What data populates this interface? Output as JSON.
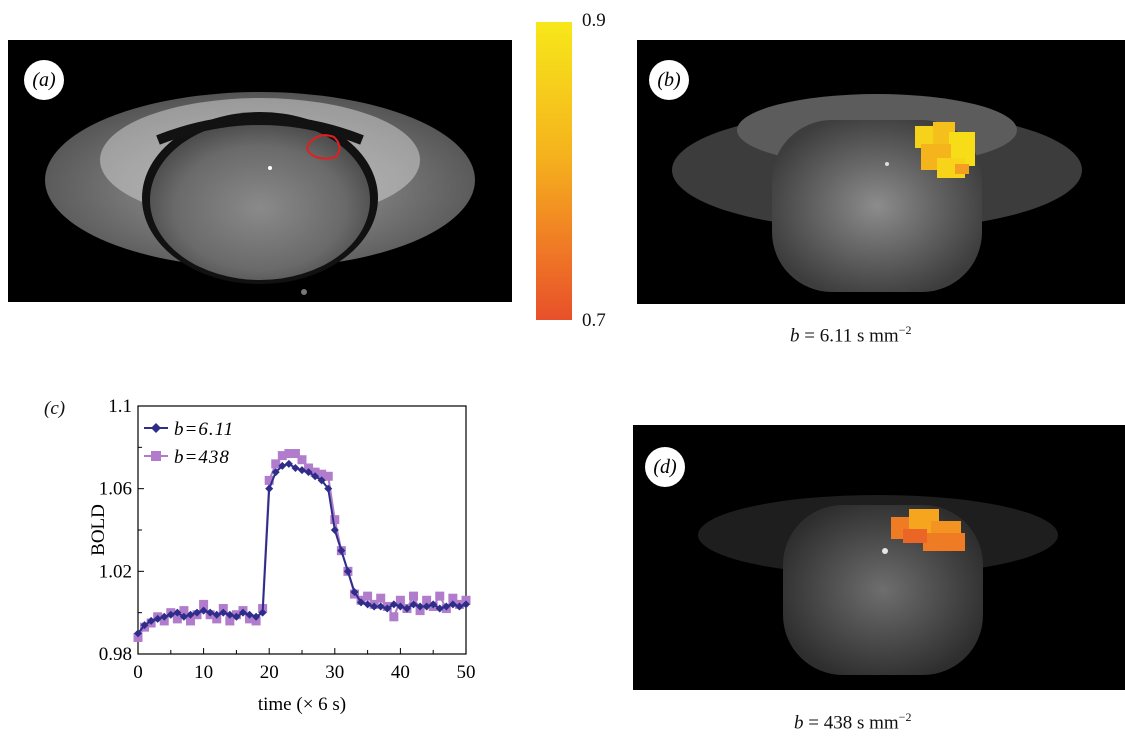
{
  "panels": {
    "a": {
      "label": "(a)"
    },
    "b": {
      "label": "(b)",
      "caption_prefix": "b",
      "caption_value": " = 6.11 s mm",
      "caption_exp": "−2"
    },
    "c": {
      "label": "(c)"
    },
    "d": {
      "label": "(d)",
      "caption_prefix": "b",
      "caption_value": " = 438 s mm",
      "caption_exp": "−2"
    }
  },
  "colorbar": {
    "max_label": "0.9",
    "min_label": "0.7",
    "colors": [
      "#f7e81a",
      "#f5b21d",
      "#f07b25",
      "#e8502a"
    ]
  },
  "chart_data": {
    "type": "line",
    "title": "",
    "xlabel": "time (× 6 s)",
    "ylabel": "BOLD",
    "xlim": [
      0,
      50
    ],
    "ylim": [
      0.98,
      1.1
    ],
    "xticks": [
      "0",
      "10",
      "20",
      "30",
      "40",
      "50"
    ],
    "yticks": [
      "0.98",
      "1.02",
      "1.06",
      "1.1"
    ],
    "legend": "top-left",
    "series": [
      {
        "name": "b=6.11",
        "color": "#2e2e8a",
        "x": [
          0,
          1,
          2,
          3,
          4,
          5,
          6,
          7,
          8,
          9,
          10,
          11,
          12,
          13,
          14,
          15,
          16,
          17,
          18,
          19,
          20,
          21,
          22,
          23,
          24,
          25,
          26,
          27,
          28,
          29,
          30,
          31,
          32,
          33,
          34,
          35,
          36,
          37,
          38,
          39,
          40,
          41,
          42,
          43,
          44,
          45,
          46,
          47,
          48,
          49,
          50
        ],
        "values": [
          0.99,
          0.994,
          0.996,
          0.997,
          0.998,
          0.999,
          1.0,
          0.998,
          0.999,
          1.0,
          1.001,
          1.0,
          0.999,
          1.0,
          0.999,
          0.998,
          1.0,
          0.999,
          0.998,
          1.0,
          1.06,
          1.068,
          1.071,
          1.072,
          1.07,
          1.069,
          1.068,
          1.066,
          1.064,
          1.06,
          1.04,
          1.03,
          1.02,
          1.01,
          1.005,
          1.004,
          1.003,
          1.003,
          1.002,
          1.004,
          1.003,
          1.002,
          1.004,
          1.003,
          1.003,
          1.004,
          1.002,
          1.003,
          1.004,
          1.003,
          1.004
        ]
      },
      {
        "name": "b=438",
        "color": "#b07ccb",
        "x": [
          0,
          1,
          2,
          3,
          4,
          5,
          6,
          7,
          8,
          9,
          10,
          11,
          12,
          13,
          14,
          15,
          16,
          17,
          18,
          19,
          20,
          21,
          22,
          23,
          24,
          25,
          26,
          27,
          28,
          29,
          30,
          31,
          32,
          33,
          34,
          35,
          36,
          37,
          38,
          39,
          40,
          41,
          42,
          43,
          44,
          45,
          46,
          47,
          48,
          49,
          50
        ],
        "values": [
          0.988,
          0.993,
          0.995,
          0.998,
          0.996,
          1.0,
          0.997,
          1.001,
          0.996,
          0.999,
          1.004,
          0.999,
          0.997,
          1.002,
          0.996,
          0.999,
          1.001,
          0.997,
          0.996,
          1.002,
          1.064,
          1.072,
          1.076,
          1.077,
          1.077,
          1.074,
          1.07,
          1.068,
          1.067,
          1.066,
          1.045,
          1.03,
          1.02,
          1.009,
          1.006,
          1.008,
          1.004,
          1.007,
          1.003,
          0.998,
          1.006,
          1.002,
          1.008,
          1.001,
          1.006,
          1.003,
          1.008,
          1.002,
          1.007,
          1.004,
          1.006
        ]
      }
    ]
  }
}
